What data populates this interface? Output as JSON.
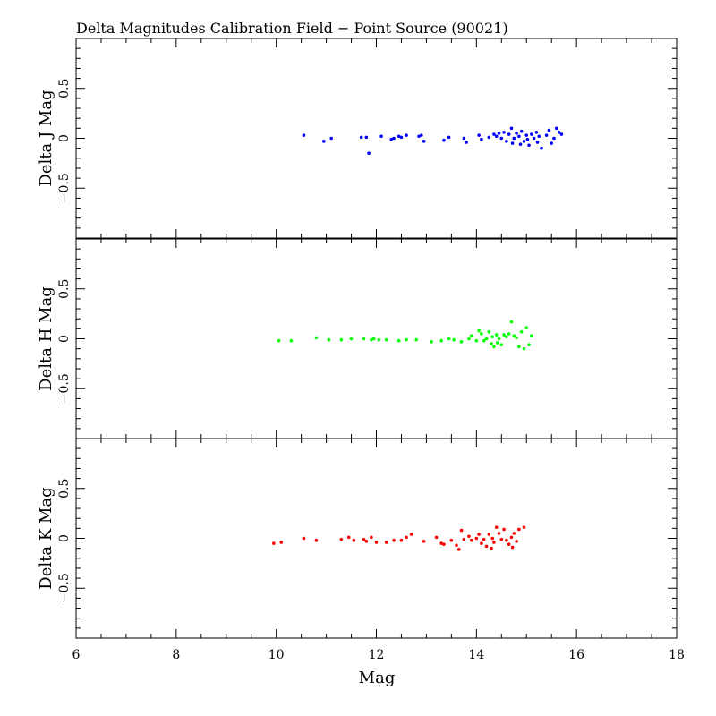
{
  "chart_data": {
    "title": "Delta Magnitudes Calibration Field − Point Source (90021)",
    "type": "scatter",
    "xlabel": "Mag",
    "xlim": [
      6,
      18
    ],
    "x_ticks": [
      "6",
      "8",
      "10",
      "12",
      "14",
      "16",
      "18"
    ],
    "panels": [
      {
        "name": "J",
        "ylabel": "Delta J Mag",
        "ylim": [
          -1,
          1
        ],
        "y_ticks": [
          "−0.5",
          "0",
          "0.5"
        ],
        "color": "#0000ff",
        "points": [
          [
            10.55,
            0.03
          ],
          [
            10.95,
            -0.03
          ],
          [
            11.1,
            0.0
          ],
          [
            11.7,
            0.01
          ],
          [
            11.8,
            0.01
          ],
          [
            11.85,
            -0.15
          ],
          [
            12.1,
            0.02
          ],
          [
            12.3,
            -0.01
          ],
          [
            12.35,
            0.0
          ],
          [
            12.45,
            0.02
          ],
          [
            12.5,
            0.01
          ],
          [
            12.6,
            0.03
          ],
          [
            12.85,
            0.02
          ],
          [
            12.9,
            0.03
          ],
          [
            12.95,
            -0.03
          ],
          [
            13.35,
            -0.02
          ],
          [
            13.45,
            0.01
          ],
          [
            13.75,
            0.0
          ],
          [
            13.8,
            -0.04
          ],
          [
            14.05,
            0.03
          ],
          [
            14.1,
            -0.01
          ],
          [
            14.25,
            0.01
          ],
          [
            14.35,
            0.04
          ],
          [
            14.4,
            0.02
          ],
          [
            14.45,
            0.05
          ],
          [
            14.5,
            0.0
          ],
          [
            14.55,
            0.06
          ],
          [
            14.6,
            -0.03
          ],
          [
            14.65,
            0.04
          ],
          [
            14.7,
            0.1
          ],
          [
            14.72,
            -0.05
          ],
          [
            14.75,
            0.0
          ],
          [
            14.8,
            0.05
          ],
          [
            14.85,
            0.02
          ],
          [
            14.88,
            -0.06
          ],
          [
            14.9,
            0.07
          ],
          [
            14.95,
            -0.03
          ],
          [
            15.0,
            0.03
          ],
          [
            15.02,
            -0.01
          ],
          [
            15.05,
            -0.07
          ],
          [
            15.1,
            0.04
          ],
          [
            15.15,
            0.0
          ],
          [
            15.2,
            0.06
          ],
          [
            15.22,
            -0.04
          ],
          [
            15.25,
            0.02
          ],
          [
            15.3,
            -0.1
          ],
          [
            15.4,
            0.03
          ],
          [
            15.45,
            0.08
          ],
          [
            15.5,
            -0.05
          ],
          [
            15.55,
            0.0
          ],
          [
            15.6,
            0.1
          ],
          [
            15.65,
            0.06
          ],
          [
            15.7,
            0.04
          ]
        ]
      },
      {
        "name": "H",
        "ylabel": "Delta H Mag",
        "ylim": [
          -1,
          1
        ],
        "y_ticks": [
          "−0.5",
          "0",
          "0.5"
        ],
        "color": "#00ff00",
        "points": [
          [
            10.05,
            -0.02
          ],
          [
            10.3,
            -0.02
          ],
          [
            10.8,
            0.01
          ],
          [
            11.05,
            -0.01
          ],
          [
            11.3,
            -0.01
          ],
          [
            11.5,
            0.0
          ],
          [
            11.75,
            0.0
          ],
          [
            11.9,
            -0.01
          ],
          [
            11.95,
            0.0
          ],
          [
            12.05,
            -0.01
          ],
          [
            12.2,
            -0.01
          ],
          [
            12.45,
            -0.02
          ],
          [
            12.6,
            -0.01
          ],
          [
            12.8,
            -0.01
          ],
          [
            13.1,
            -0.03
          ],
          [
            13.3,
            -0.02
          ],
          [
            13.45,
            0.0
          ],
          [
            13.55,
            -0.01
          ],
          [
            13.7,
            -0.03
          ],
          [
            13.85,
            0.0
          ],
          [
            13.9,
            0.03
          ],
          [
            14.0,
            -0.02
          ],
          [
            14.05,
            0.08
          ],
          [
            14.1,
            0.05
          ],
          [
            14.15,
            -0.02
          ],
          [
            14.2,
            0.0
          ],
          [
            14.25,
            0.07
          ],
          [
            14.3,
            -0.05
          ],
          [
            14.32,
            0.02
          ],
          [
            14.35,
            -0.08
          ],
          [
            14.4,
            0.04
          ],
          [
            14.42,
            -0.04
          ],
          [
            14.45,
            0.0
          ],
          [
            14.5,
            -0.06
          ],
          [
            14.55,
            0.04
          ],
          [
            14.6,
            0.02
          ],
          [
            14.65,
            0.05
          ],
          [
            14.7,
            0.17
          ],
          [
            14.75,
            0.03
          ],
          [
            14.8,
            0.01
          ],
          [
            14.85,
            -0.08
          ],
          [
            14.9,
            0.07
          ],
          [
            14.95,
            -0.1
          ],
          [
            15.0,
            0.11
          ],
          [
            15.05,
            -0.06
          ],
          [
            15.1,
            0.03
          ]
        ]
      },
      {
        "name": "K",
        "ylabel": "Delta K Mag",
        "ylim": [
          -1,
          1
        ],
        "y_ticks": [
          "−0.5",
          "0",
          "0.5"
        ],
        "color": "#ff0000",
        "points": [
          [
            9.95,
            -0.05
          ],
          [
            10.1,
            -0.04
          ],
          [
            10.55,
            0.0
          ],
          [
            10.8,
            -0.02
          ],
          [
            11.3,
            -0.01
          ],
          [
            11.45,
            0.01
          ],
          [
            11.55,
            -0.02
          ],
          [
            11.75,
            -0.01
          ],
          [
            11.8,
            -0.03
          ],
          [
            11.9,
            0.01
          ],
          [
            12.0,
            -0.04
          ],
          [
            12.2,
            -0.04
          ],
          [
            12.35,
            -0.02
          ],
          [
            12.5,
            -0.02
          ],
          [
            12.6,
            0.01
          ],
          [
            12.7,
            0.04
          ],
          [
            12.95,
            -0.03
          ],
          [
            13.2,
            0.01
          ],
          [
            13.3,
            -0.05
          ],
          [
            13.35,
            -0.06
          ],
          [
            13.5,
            -0.02
          ],
          [
            13.6,
            -0.07
          ],
          [
            13.65,
            -0.11
          ],
          [
            13.7,
            0.08
          ],
          [
            13.75,
            -0.01
          ],
          [
            13.85,
            0.02
          ],
          [
            13.9,
            -0.02
          ],
          [
            14.0,
            0.0
          ],
          [
            14.05,
            0.04
          ],
          [
            14.1,
            -0.05
          ],
          [
            14.15,
            -0.01
          ],
          [
            14.2,
            -0.08
          ],
          [
            14.25,
            0.04
          ],
          [
            14.3,
            -0.1
          ],
          [
            14.32,
            0.0
          ],
          [
            14.35,
            -0.04
          ],
          [
            14.4,
            0.11
          ],
          [
            14.45,
            0.05
          ],
          [
            14.5,
            -0.01
          ],
          [
            14.55,
            0.09
          ],
          [
            14.6,
            -0.02
          ],
          [
            14.65,
            -0.06
          ],
          [
            14.7,
            0.01
          ],
          [
            14.72,
            -0.09
          ],
          [
            14.75,
            0.05
          ],
          [
            14.8,
            -0.03
          ],
          [
            14.85,
            0.09
          ],
          [
            14.95,
            0.11
          ]
        ]
      }
    ]
  }
}
